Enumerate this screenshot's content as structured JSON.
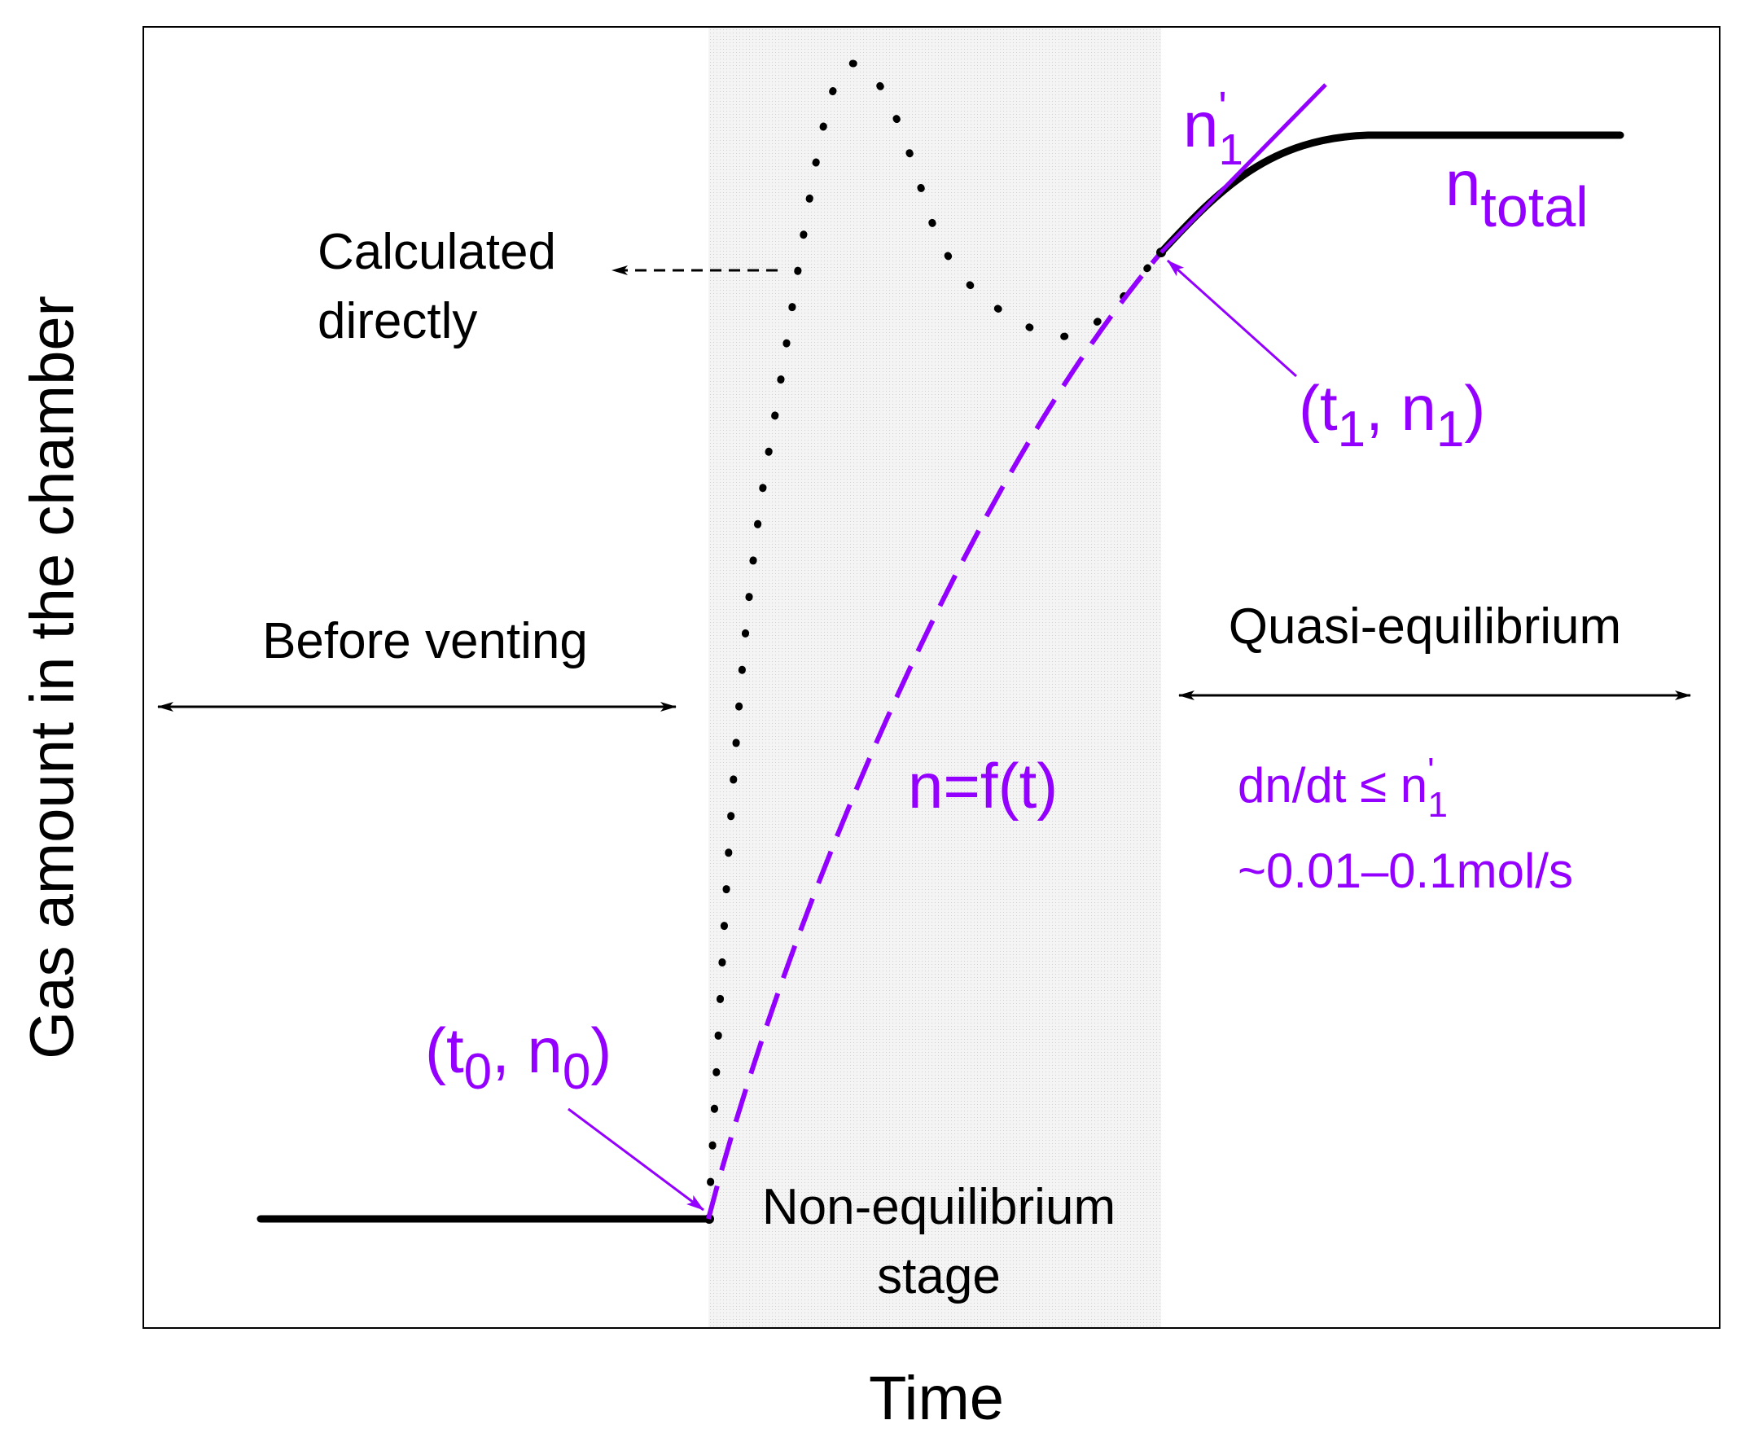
{
  "colors": {
    "ink": "#000000",
    "accent": "#9400ff",
    "shade": "#e8e8e8",
    "background": "#ffffff"
  },
  "axes": {
    "xlabel": "Time",
    "ylabel": "Gas amount in the chamber"
  },
  "regions": {
    "before": "Before venting",
    "nonequilibrium_line1": "Non-equilibrium",
    "nonequilibrium_line2": "stage",
    "quasi": "Quasi-equilibrium"
  },
  "annotations": {
    "calculated_line1": "Calculated",
    "calculated_line2": "directly",
    "start_point": {
      "open": "(t",
      "sub1": "0",
      "mid": ", n",
      "sub2": "0",
      "close": ")"
    },
    "end_point": {
      "open": "(t",
      "sub1": "1",
      "mid": ", n",
      "sub2": "1",
      "close": ")"
    },
    "fit_function": "n=f(t)",
    "slope_label": {
      "base": "n",
      "prime": "'",
      "sub": "1"
    },
    "ntotal_label": {
      "base": "n",
      "sub": "total"
    },
    "rate_condition": {
      "text": "dn/dt ≤ n",
      "prime": "'",
      "sub": "1"
    },
    "rate_range": "~0.01–0.1mol/s"
  }
}
